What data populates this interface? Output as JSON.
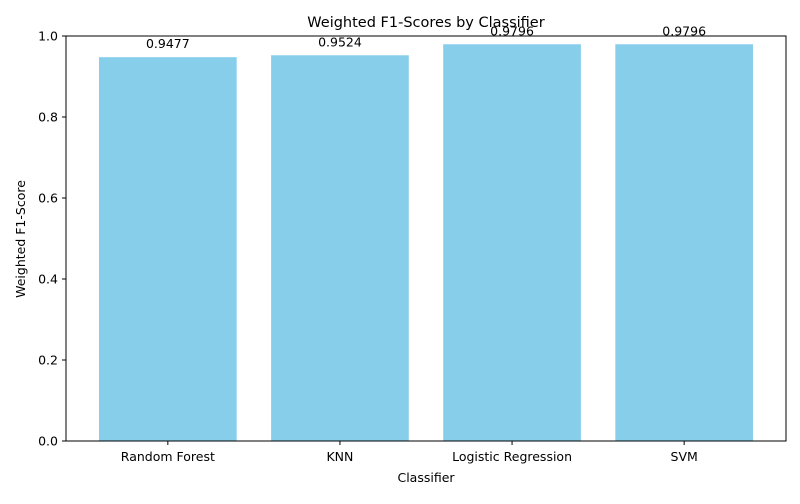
{
  "chart_data": {
    "type": "bar",
    "title": "Weighted F1-Scores by Classifier",
    "xlabel": "Classifier",
    "ylabel": "Weighted F1-Score",
    "categories": [
      "Random Forest",
      "KNN",
      "Logistic Regression",
      "SVM"
    ],
    "values": [
      0.9477,
      0.9524,
      0.9796,
      0.9796
    ],
    "value_labels": [
      "0.9477",
      "0.9524",
      "0.9796",
      "0.9796"
    ],
    "ylim": [
      0,
      1.0
    ],
    "yticks": [
      0.0,
      0.2,
      0.4,
      0.6,
      0.8,
      1.0
    ],
    "ytick_labels": [
      "0.0",
      "0.2",
      "0.4",
      "0.6",
      "0.8",
      "1.0"
    ],
    "grid": false,
    "bar_color": "#87CEEB"
  }
}
